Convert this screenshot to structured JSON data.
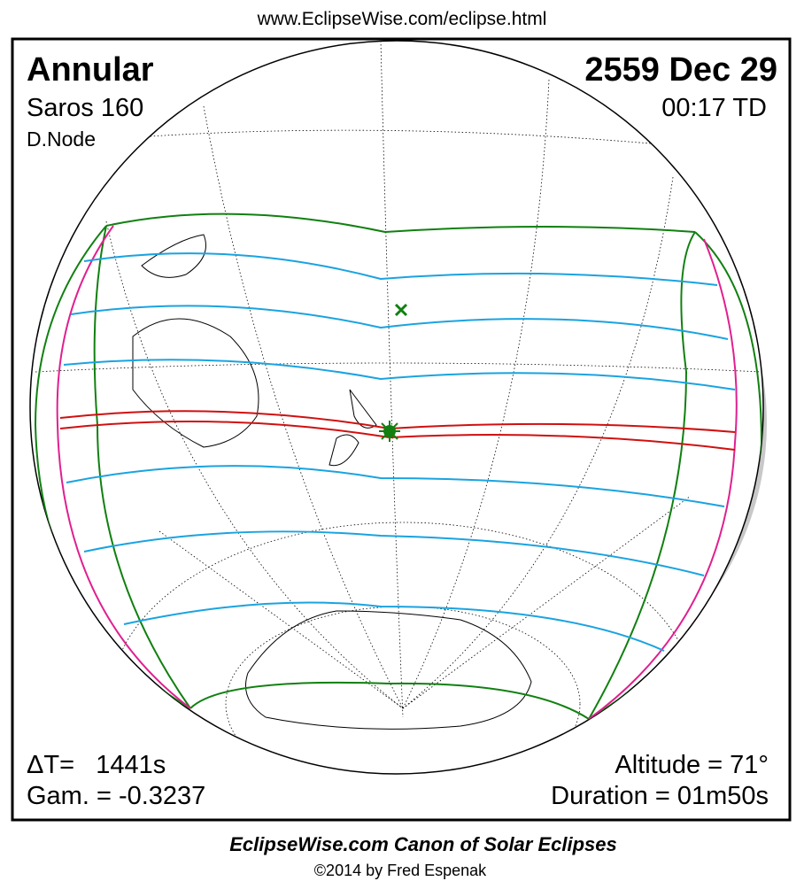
{
  "header": {
    "url": "www.EclipseWise.com/eclipse.html"
  },
  "panel": {
    "eclipse_type": "Annular",
    "saros": "Saros 160",
    "node": "D.Node",
    "date": "2559 Dec 29",
    "time": "00:17 TD",
    "delta_t": "ΔT=   1441s",
    "gamma": "Gam. = -0.3237",
    "altitude": "Altitude = 71°",
    "duration": "Duration = 01m50s"
  },
  "footer": {
    "title": "EclipseWise.com Canon of Solar Eclipses",
    "copyright": "©2014 by Fred Espenak"
  }
}
